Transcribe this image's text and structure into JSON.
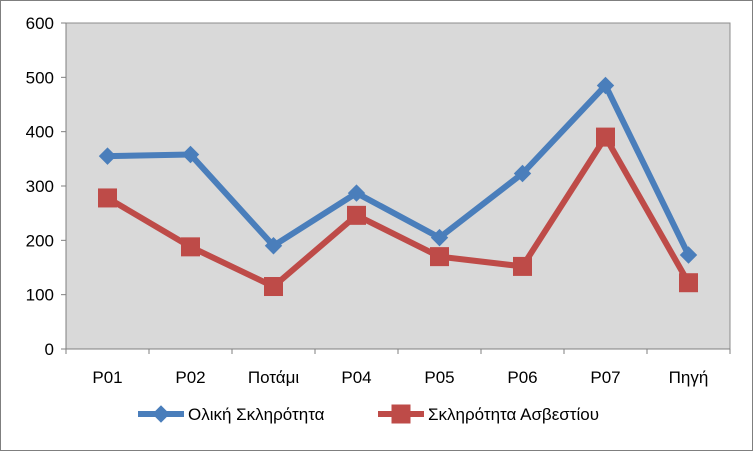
{
  "chart_data": {
    "type": "line",
    "categories": [
      "P01",
      "P02",
      "Ποτάμι",
      "P04",
      "P05",
      "P06",
      "P07",
      "Πηγή"
    ],
    "ylim": [
      0,
      600
    ],
    "yticks": [
      "0",
      "100",
      "200",
      "300",
      "400",
      "500",
      "600"
    ],
    "grid": false,
    "legend_position": "bottom",
    "series": [
      {
        "name": "Ολική Σκληρότητα",
        "values": [
          355,
          358,
          190,
          287,
          205,
          323,
          485,
          173
        ],
        "color": "#4a7ebb",
        "marker": "diamond"
      },
      {
        "name": "Σκληρότητα Ασβεστίου",
        "values": [
          278,
          188,
          115,
          246,
          170,
          152,
          390,
          122
        ],
        "color": "#be4b48",
        "marker": "square"
      }
    ],
    "plot_background": "#d9d9d9"
  }
}
